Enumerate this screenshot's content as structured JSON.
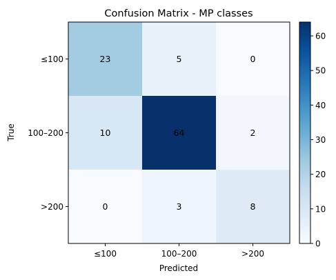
{
  "chart_data": {
    "type": "heatmap",
    "title": "Confusion Matrix - MP classes",
    "xlabel": "Predicted",
    "ylabel": "True",
    "x_categories": [
      "≤100",
      "100–200",
      ">200"
    ],
    "y_categories": [
      "≤100",
      "100–200",
      ">200"
    ],
    "matrix": [
      [
        23,
        5,
        0
      ],
      [
        10,
        64,
        2
      ],
      [
        0,
        3,
        8
      ]
    ],
    "colorbar": {
      "range": [
        0,
        64
      ],
      "ticks": [
        0,
        10,
        20,
        30,
        40,
        50,
        60
      ],
      "colormap": "Blues"
    },
    "colors": {
      "text": "#000000",
      "text_on_dark": "#ffffff"
    }
  }
}
